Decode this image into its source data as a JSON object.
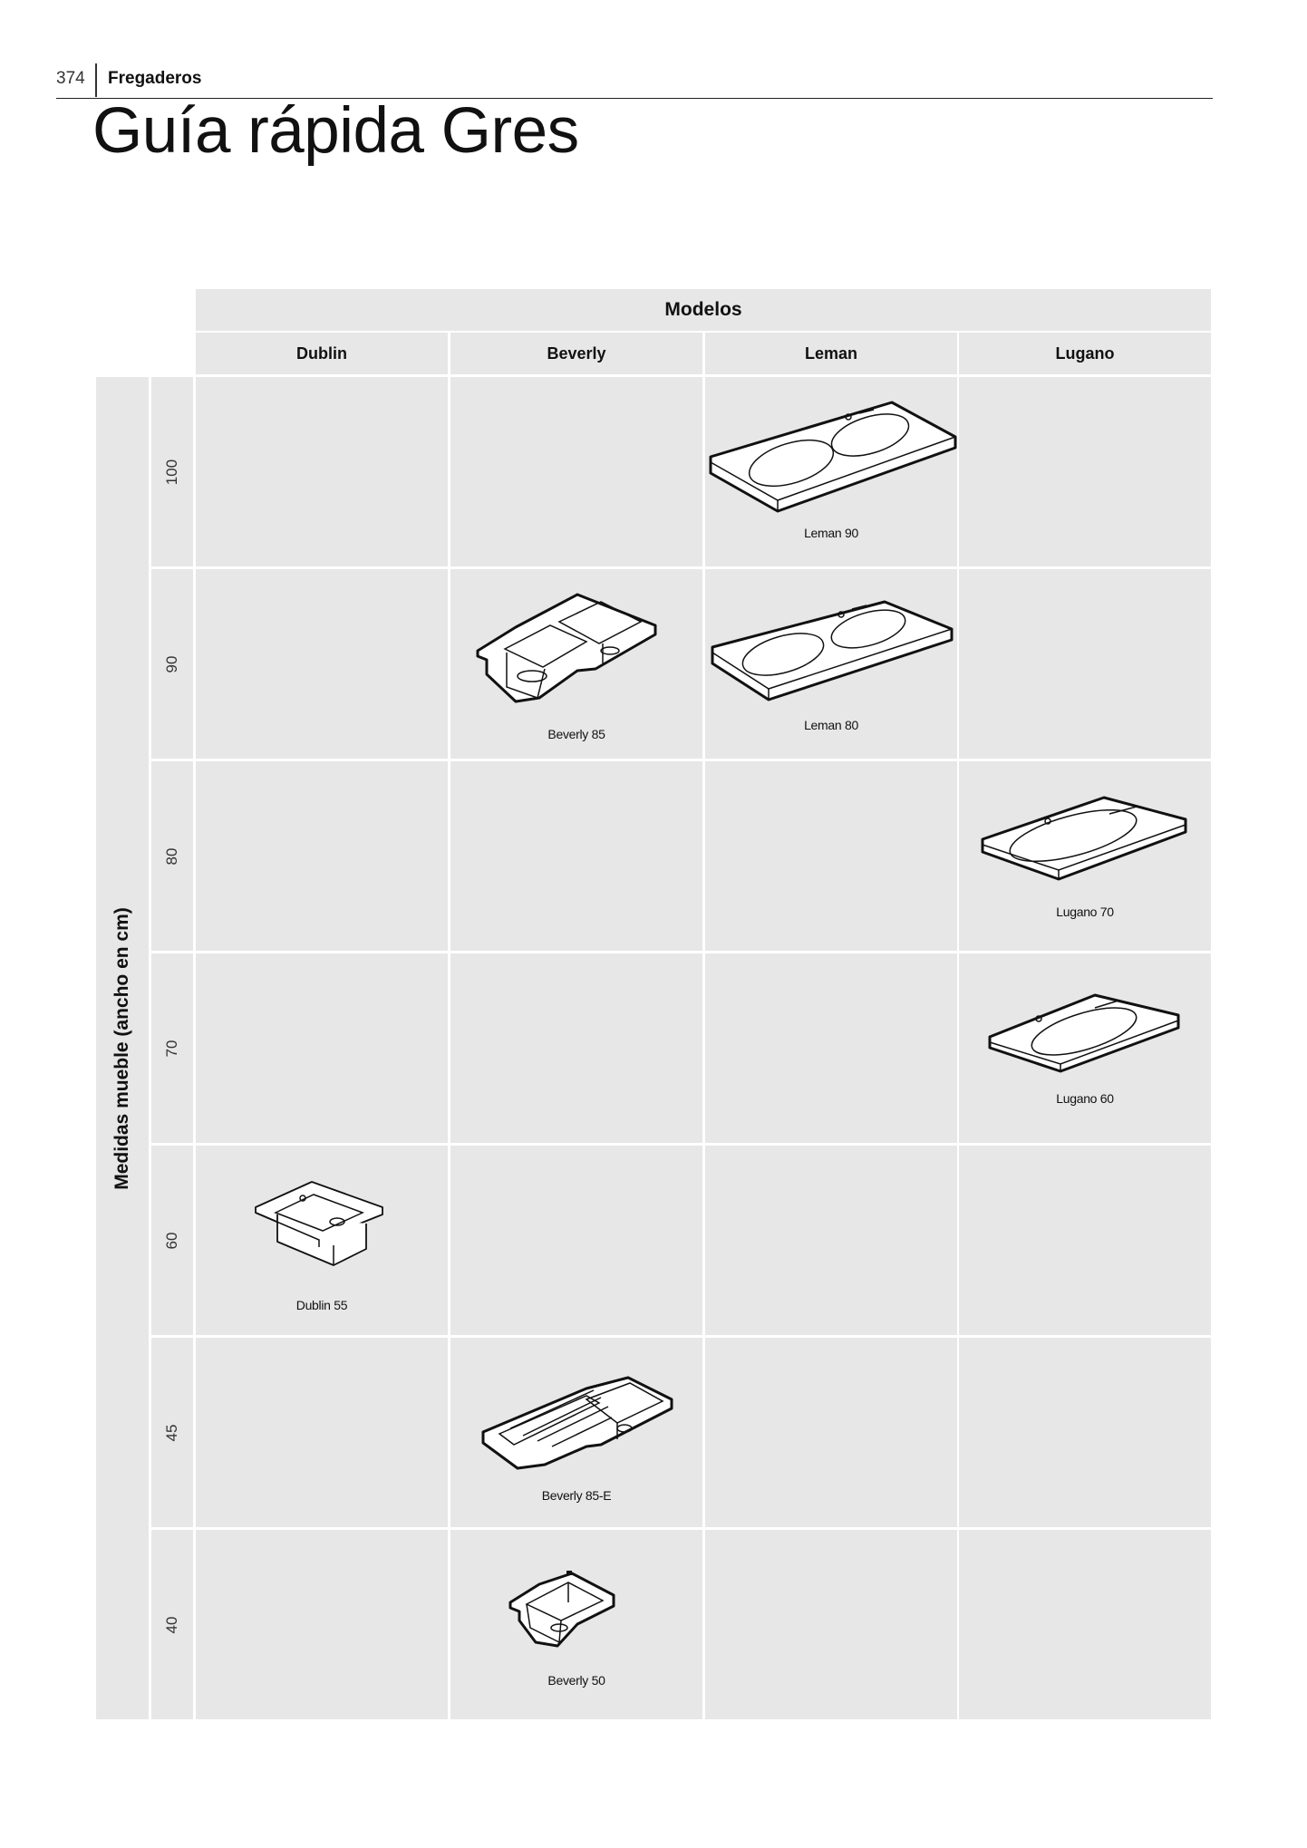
{
  "header": {
    "page_number": "374",
    "section": "Fregaderos",
    "title": "Guía rápida Gres"
  },
  "table": {
    "models_header": "Modelos",
    "columns": [
      "Dublin",
      "Beverly",
      "Leman",
      "Lugano"
    ],
    "row_axis_label": "Medidas mueble (ancho en cm)",
    "rows": [
      "100",
      "90",
      "80",
      "70",
      "60",
      "45",
      "40"
    ],
    "products": {
      "leman_90": "Leman 90",
      "beverly_85": "Beverly 85",
      "leman_80": "Leman 80",
      "lugano_70": "Lugano 70",
      "lugano_60": "Lugano 60",
      "dublin_55": "Dublin 55",
      "beverly_85_e": "Beverly 85-E",
      "beverly_50": "Beverly 50"
    }
  }
}
